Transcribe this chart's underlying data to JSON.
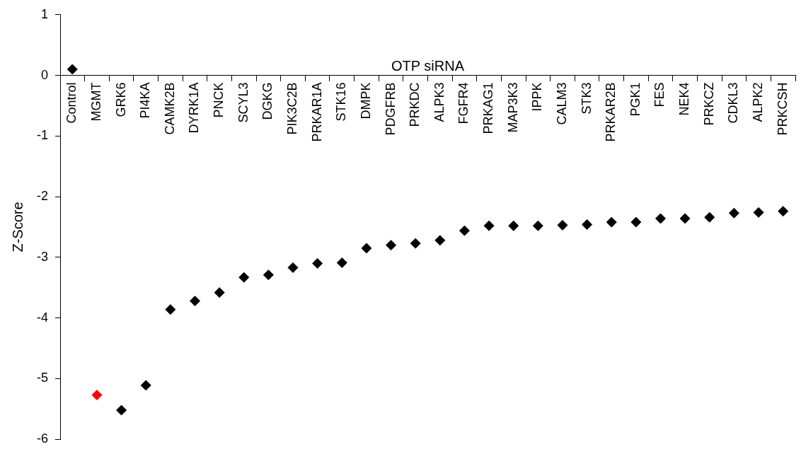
{
  "chart_data": {
    "type": "scatter",
    "xlabel": "OTP siRNA",
    "ylabel": "Z-Score",
    "categories": [
      "Control",
      "MGMT",
      "GRK6",
      "PI4KA",
      "CAMK2B",
      "DYRK1A",
      "PNCK",
      "SCYL3",
      "DGKG",
      "PIK3C2B",
      "PRKAR1A",
      "STK16",
      "DMPK",
      "PDGFRB",
      "PRKDC",
      "ALPK3",
      "FGFR4",
      "PRKAG1",
      "MAP3K3",
      "IPPK",
      "CALM3",
      "STK3",
      "PRKAR2B",
      "PGK1",
      "FES",
      "NEK4",
      "PRKCZ",
      "CDKL3",
      "ALPK2",
      "PRKCSH"
    ],
    "values": [
      0.1,
      -5.27,
      -5.52,
      -5.11,
      -3.86,
      -3.72,
      -3.58,
      -3.33,
      -3.29,
      -3.17,
      -3.1,
      -3.09,
      -2.85,
      -2.8,
      -2.77,
      -2.72,
      -2.56,
      -2.48,
      -2.48,
      -2.48,
      -2.47,
      -2.46,
      -2.42,
      -2.42,
      -2.36,
      -2.36,
      -2.34,
      -2.27,
      -2.26,
      -2.24
    ],
    "colors": [
      "#000000",
      "#ff0000",
      "#000000",
      "#000000",
      "#000000",
      "#000000",
      "#000000",
      "#000000",
      "#000000",
      "#000000",
      "#000000",
      "#000000",
      "#000000",
      "#000000",
      "#000000",
      "#000000",
      "#000000",
      "#000000",
      "#000000",
      "#000000",
      "#000000",
      "#000000",
      "#000000",
      "#000000",
      "#000000",
      "#000000",
      "#000000",
      "#000000",
      "#000000",
      "#000000"
    ],
    "ylim": [
      -6,
      1
    ],
    "yticks": [
      -6,
      -5,
      -4,
      -3,
      -2,
      -1,
      0,
      1
    ],
    "marker": "diamond",
    "grid": false,
    "legend": false
  }
}
